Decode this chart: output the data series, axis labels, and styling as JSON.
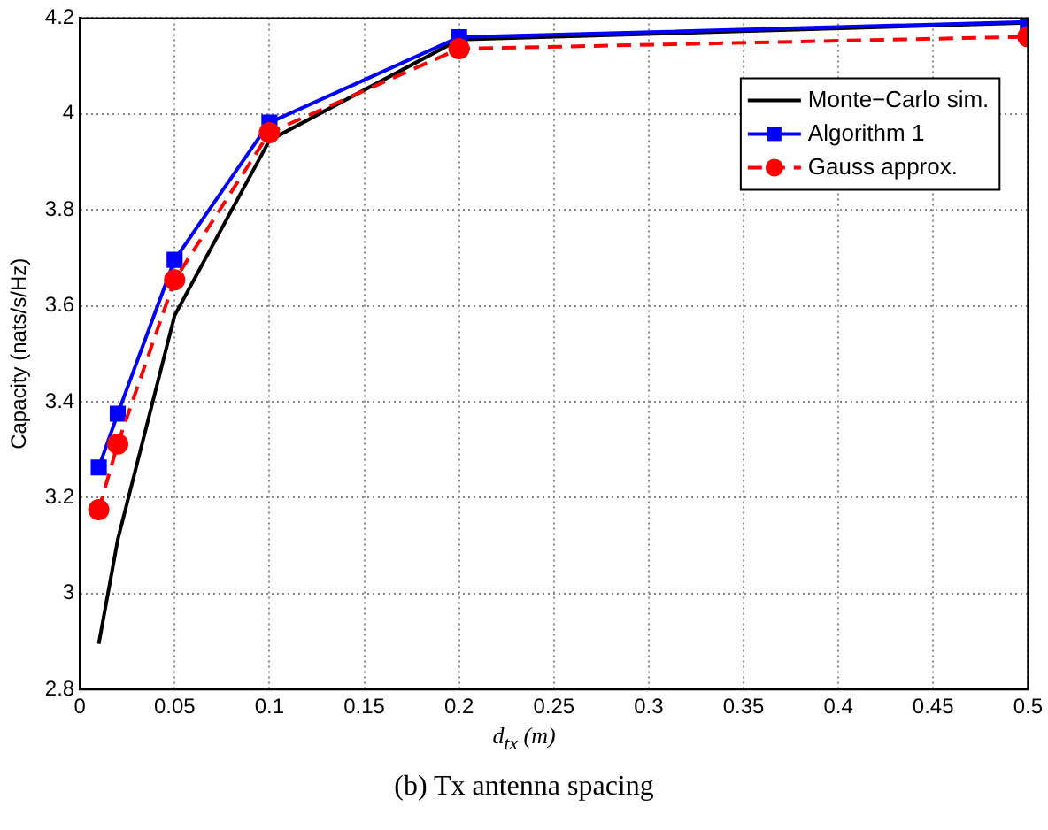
{
  "chart_data": {
    "type": "line",
    "xlabel": "d$_{tx}$ (m)",
    "ylabel": "Capacity (nats/s/Hz)",
    "x": [
      0.01,
      0.02,
      0.05,
      0.1,
      0.2,
      0.5
    ],
    "series": [
      {
        "name": "Monte−Carlo sim.",
        "color": "#000000",
        "values": [
          2.895,
          3.112,
          3.58,
          3.945,
          4.155,
          4.19
        ],
        "marker": "none",
        "line_style": "solid"
      },
      {
        "name": "Algorithm 1",
        "color": "#0000ff",
        "values": [
          3.263,
          3.375,
          3.696,
          3.982,
          4.16,
          4.192
        ],
        "marker": "square",
        "line_style": "solid"
      },
      {
        "name": "Gauss approx.",
        "color": "#ff0000",
        "values": [
          3.175,
          3.312,
          3.654,
          3.961,
          4.136,
          4.161
        ],
        "marker": "circle",
        "line_style": "dashed"
      }
    ],
    "xlim": [
      0,
      0.5
    ],
    "xticks": [
      0,
      0.05,
      0.1,
      0.15,
      0.2,
      0.25,
      0.3,
      0.35,
      0.4,
      0.45,
      0.5
    ],
    "ylim": [
      2.8,
      4.2
    ],
    "yticks": [
      2.8,
      3,
      3.2,
      3.4,
      3.6,
      3.8,
      4,
      4.2
    ],
    "grid": true,
    "legend": "top right",
    "annotations": [
      "(b) Tx antenna spacing"
    ]
  }
}
